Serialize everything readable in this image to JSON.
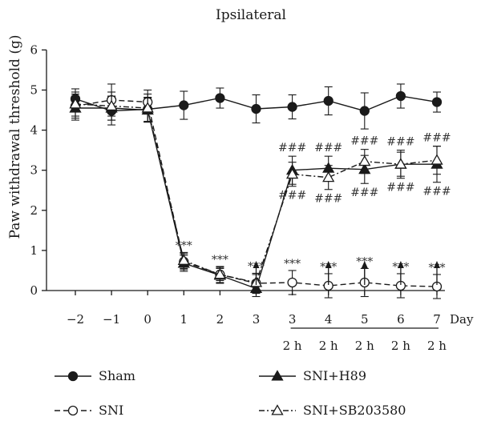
{
  "chart_data": {
    "type": "line",
    "title": "Ipsilateral",
    "ylabel": "Paw withdrawal threshold (g)",
    "xlabel": "Day",
    "ylim": [
      0,
      6
    ],
    "yticks": [
      "0",
      "1",
      "2",
      "3",
      "4",
      "5",
      "6"
    ],
    "categories": [
      "−2",
      "−1",
      "0",
      "1",
      "2",
      "3",
      "3",
      "4",
      "5",
      "6",
      "7"
    ],
    "sublabels": [
      "2 h",
      "2 h",
      "2 h",
      "2 h",
      "2 h"
    ],
    "grid": false,
    "legend_position": "bottom",
    "series": [
      {
        "name": "Sham",
        "style": "solid",
        "marker": "filled-circle",
        "values": [
          4.78,
          4.48,
          4.52,
          4.62,
          4.8,
          4.53,
          4.58,
          4.73,
          4.48,
          4.85,
          4.7
        ],
        "errors": [
          0.25,
          0.35,
          0.3,
          0.35,
          0.25,
          0.35,
          0.3,
          0.35,
          0.45,
          0.3,
          0.25
        ]
      },
      {
        "name": "SNI",
        "style": "dashed",
        "marker": "open-circle",
        "values": [
          4.6,
          4.75,
          4.7,
          0.72,
          0.4,
          0.18,
          0.2,
          0.12,
          0.2,
          0.12,
          0.1
        ],
        "errors": [
          0.3,
          0.4,
          0.3,
          0.2,
          0.15,
          0.25,
          0.3,
          0.3,
          0.35,
          0.3,
          0.3
        ]
      },
      {
        "name": "SNI+H89",
        "style": "solid",
        "marker": "filled-triangle",
        "values": [
          4.55,
          4.55,
          4.5,
          0.68,
          0.38,
          0.05,
          3.0,
          3.05,
          3.02,
          3.15,
          3.15
        ],
        "errors": [
          0.3,
          0.3,
          0.3,
          0.2,
          0.2,
          0.2,
          0.35,
          0.3,
          0.35,
          0.35,
          0.45
        ]
      },
      {
        "name": "SNI+SB203580",
        "style": "dashdot",
        "marker": "open-triangle",
        "values": [
          4.65,
          4.6,
          4.55,
          0.75,
          0.4,
          0.2,
          2.9,
          2.82,
          3.22,
          3.15,
          3.25
        ],
        "errors": [
          0.3,
          0.35,
          0.35,
          0.2,
          0.2,
          0.2,
          0.3,
          0.3,
          0.3,
          0.3,
          0.35
        ]
      }
    ],
    "annotations": {
      "sig_low": "***",
      "sig_high": "###",
      "sig_low_points": [
        3,
        4,
        5,
        6,
        7,
        8,
        9,
        10
      ],
      "sig_high_points": [
        6,
        7,
        8,
        9,
        10
      ],
      "arrow_points": [
        5,
        7,
        8,
        9,
        10
      ],
      "bracket_from_point": 6,
      "bracket_to_point": 10
    }
  }
}
